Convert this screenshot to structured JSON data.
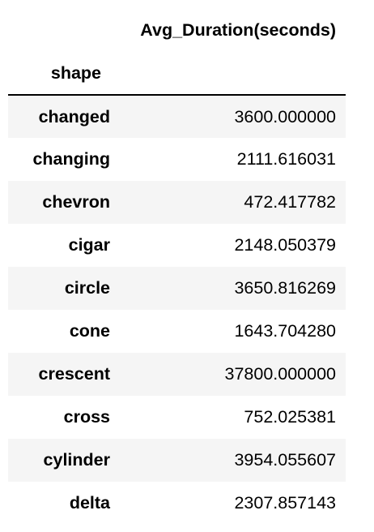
{
  "table": {
    "column_header": "Avg_Duration(seconds)",
    "index_name": "shape",
    "rows": [
      {
        "shape": "changed",
        "value": "3600.000000"
      },
      {
        "shape": "changing",
        "value": "2111.616031"
      },
      {
        "shape": "chevron",
        "value": "472.417782"
      },
      {
        "shape": "cigar",
        "value": "2148.050379"
      },
      {
        "shape": "circle",
        "value": "3650.816269"
      },
      {
        "shape": "cone",
        "value": "1643.704280"
      },
      {
        "shape": "crescent",
        "value": "37800.000000"
      },
      {
        "shape": "cross",
        "value": "752.025381"
      },
      {
        "shape": "cylinder",
        "value": "3954.055607"
      },
      {
        "shape": "delta",
        "value": "2307.857143"
      }
    ]
  }
}
